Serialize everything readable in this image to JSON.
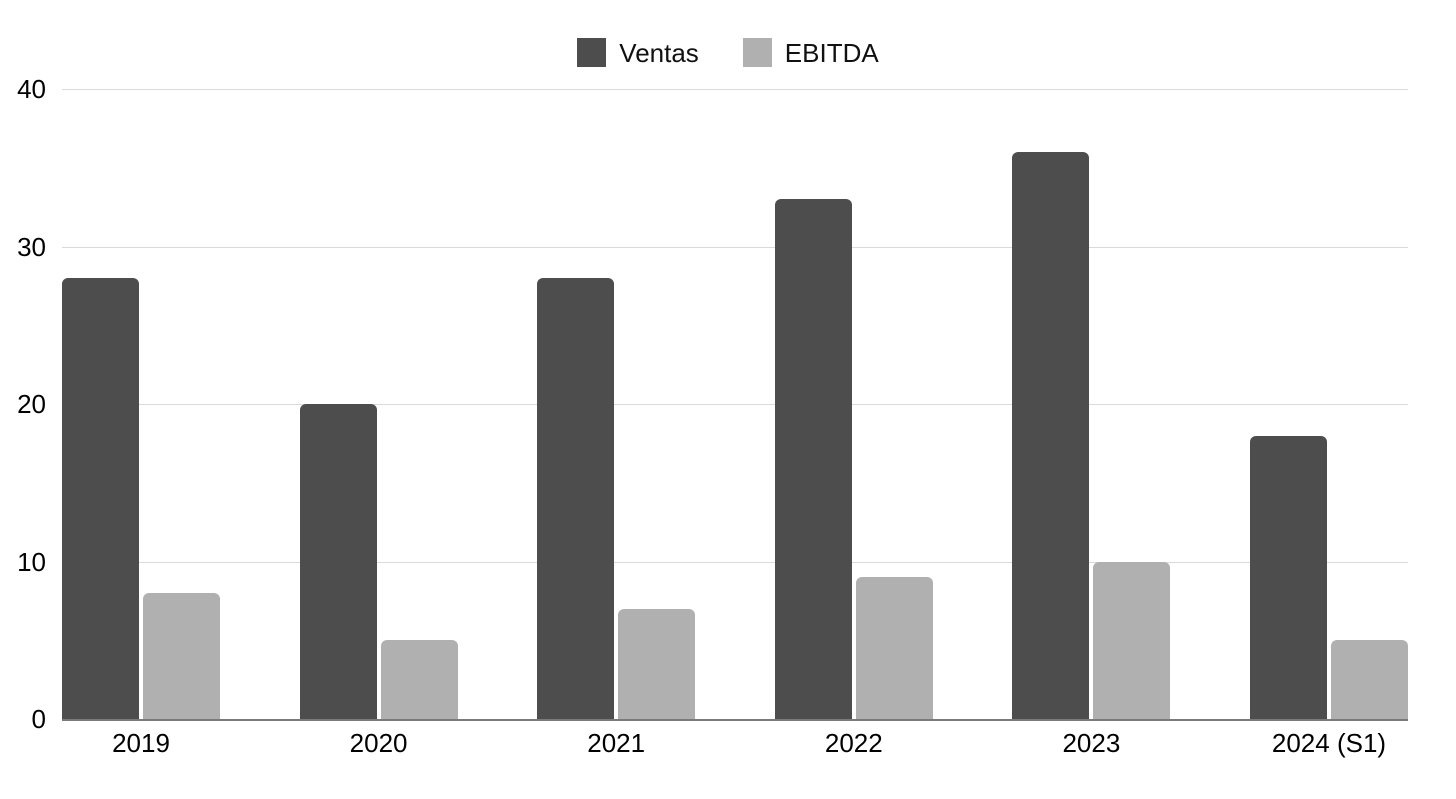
{
  "chart_data": {
    "type": "bar",
    "categories": [
      "2019",
      "2020",
      "2021",
      "2022",
      "2023",
      "2024 (S1)"
    ],
    "series": [
      {
        "name": "Ventas",
        "color": "#4d4d4d",
        "values": [
          28,
          20,
          28,
          33,
          36,
          18
        ]
      },
      {
        "name": "EBITDA",
        "color": "#b0b0b0",
        "values": [
          8,
          5,
          7,
          9,
          10,
          5
        ]
      }
    ],
    "title": "",
    "xlabel": "",
    "ylabel": "",
    "ylim": [
      0,
      40
    ],
    "yticks": [
      0,
      10,
      20,
      30,
      40
    ],
    "grid": true,
    "legend_position": "top"
  },
  "colors": {
    "background": "#ffffff",
    "gridline": "#dadada",
    "axis_line": "#7a7a7a",
    "label_text": "#000000",
    "legend_text": "#111111"
  }
}
